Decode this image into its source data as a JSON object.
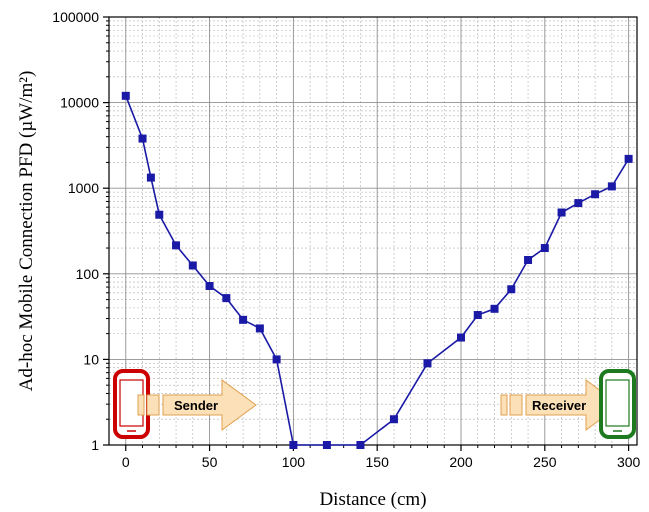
{
  "chart_data": {
    "type": "line",
    "title": "",
    "xlabel": "Distance (cm)",
    "ylabel": "Ad-hoc Mobile Connection PFD (µW/m²)",
    "y_scale": "log",
    "xlim": [
      -10,
      305
    ],
    "ylim": [
      1,
      100000
    ],
    "x_ticks": [
      0,
      50,
      100,
      150,
      200,
      250,
      300
    ],
    "x_tick_labels": [
      "0",
      "50",
      "100",
      "150",
      "200",
      "250",
      "300"
    ],
    "y_ticks": [
      1,
      10,
      100,
      1000,
      10000,
      100000
    ],
    "y_tick_labels": [
      "1",
      "10",
      "100",
      "1000",
      "10000",
      "100000"
    ],
    "grid": true,
    "colors": {
      "series": "#1a1aa6",
      "grid": "#b0b0b0",
      "sender_phone": "#cc0000",
      "receiver_phone": "#1e7a1e",
      "arrow_fill": "#fce0b8",
      "arrow_stroke": "#e0a050"
    },
    "series": [
      {
        "points": [
          [
            0,
            12000
          ],
          [
            10,
            3800
          ],
          [
            15,
            1330
          ],
          [
            20,
            490
          ],
          [
            30,
            215
          ],
          [
            40,
            125
          ],
          [
            50,
            72
          ],
          [
            60,
            52
          ],
          [
            70,
            29
          ],
          [
            80,
            23
          ],
          [
            90,
            10
          ],
          [
            100,
            1
          ],
          [
            120,
            1
          ],
          [
            140,
            1
          ],
          [
            160,
            2
          ],
          [
            180,
            9
          ],
          [
            200,
            18
          ],
          [
            210,
            33
          ],
          [
            220,
            39
          ],
          [
            230,
            66
          ],
          [
            240,
            145
          ],
          [
            250,
            200
          ],
          [
            260,
            520
          ],
          [
            270,
            670
          ],
          [
            280,
            850
          ],
          [
            290,
            1050
          ],
          [
            300,
            2200
          ]
        ]
      }
    ],
    "annotations": [
      {
        "label": "Sender",
        "icon": "smartphone-icon",
        "color": "red"
      },
      {
        "label": "Receiver",
        "icon": "smartphone-icon",
        "color": "green"
      }
    ]
  }
}
